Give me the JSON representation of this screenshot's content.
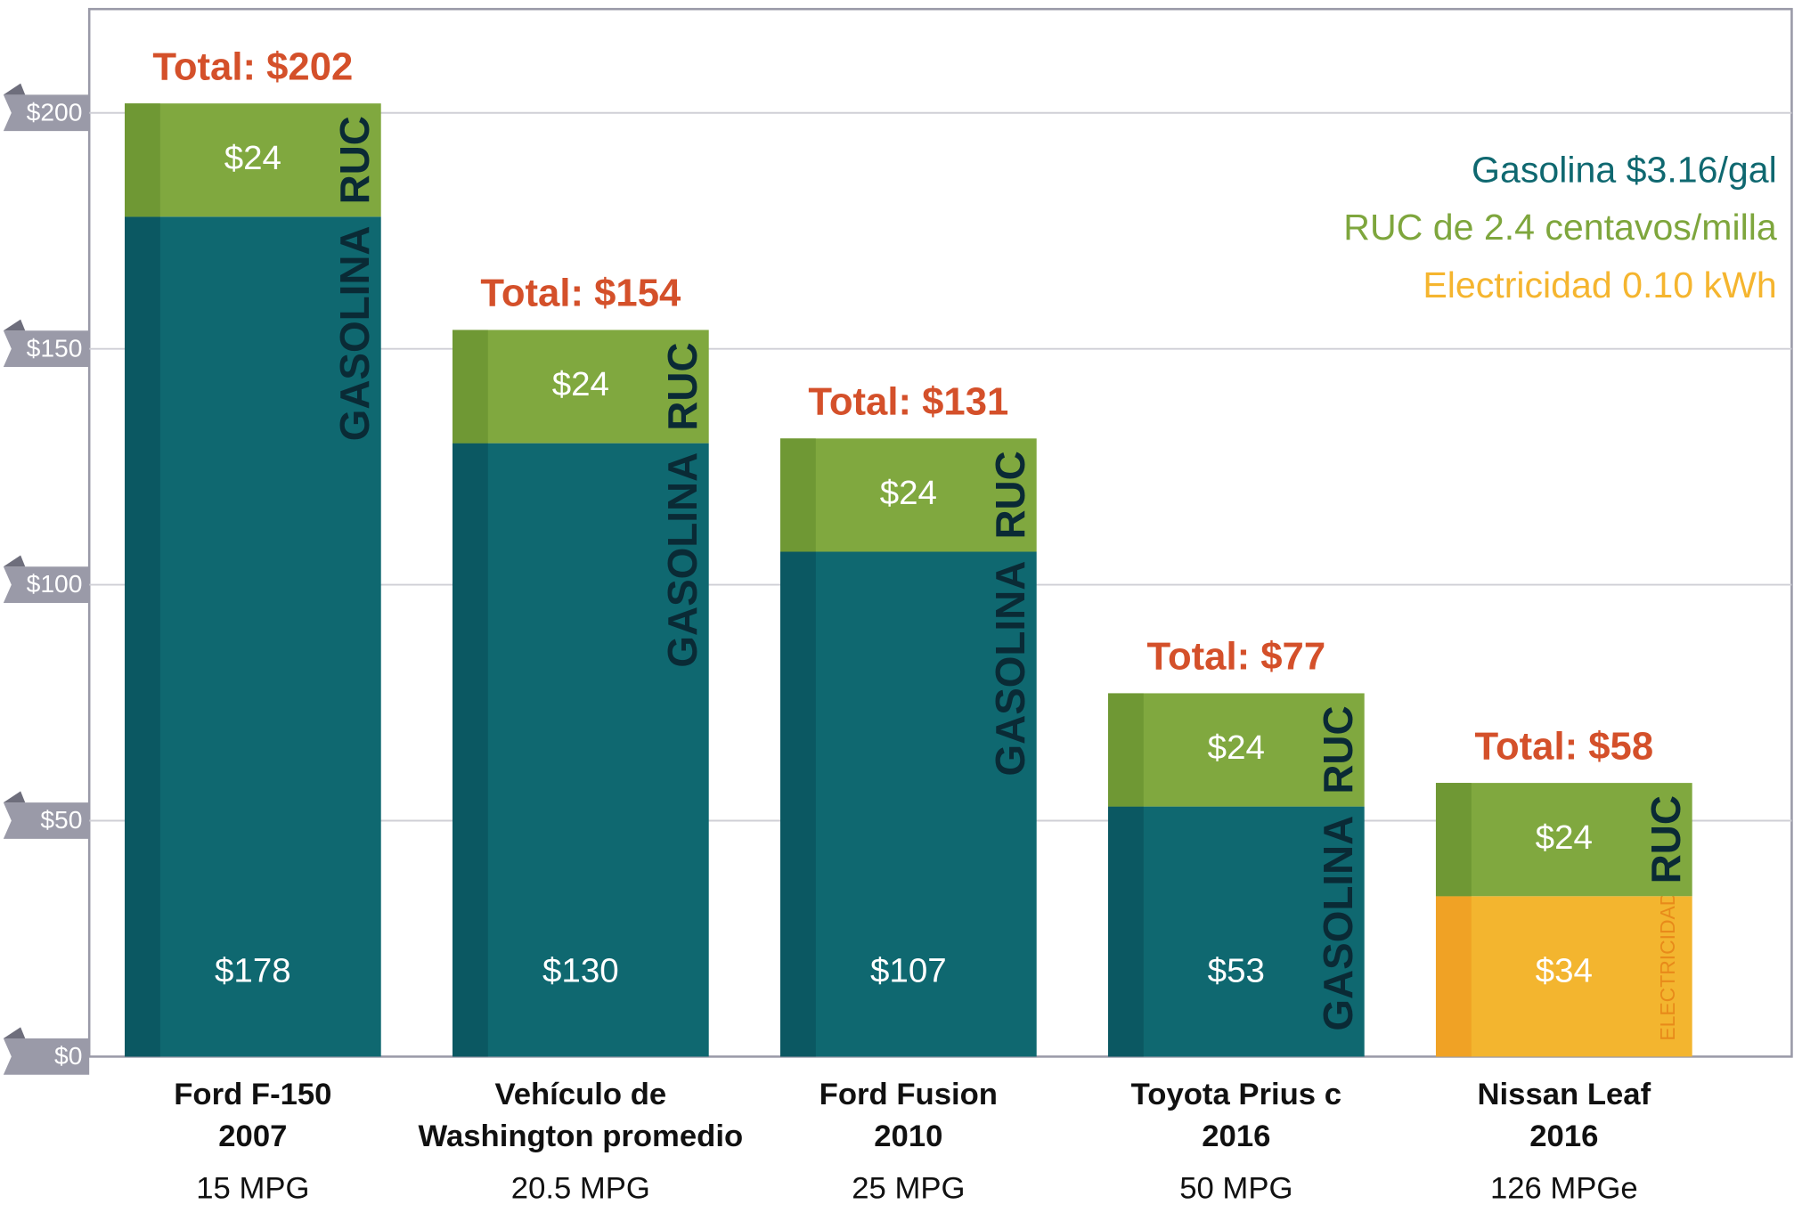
{
  "chart_data": {
    "type": "stacked_bar",
    "categories": [
      [
        "Ford F-150",
        "2007"
      ],
      [
        "Vehículo de",
        "Washington promedio"
      ],
      [
        "Ford Fusion",
        "2010"
      ],
      [
        "Toyota Prius c",
        "2016"
      ],
      [
        "Nissan Leaf",
        "2016"
      ]
    ],
    "category_notes": [
      "15 MPG",
      "20.5 MPG",
      "25 MPG",
      "50 MPG",
      "126 MPGe"
    ],
    "total_labels": [
      "Total: $202",
      "Total: $154",
      "Total: $131",
      "Total: $77",
      "Total: $58"
    ],
    "total_color": "#d4502a",
    "series": [
      {
        "name": "Gasolina $3.16/gal",
        "segment_label": "GASOLINA",
        "color": "#0f6870",
        "edge_color": "#0b5862",
        "legend_color": "#0f6870",
        "values": [
          178,
          130,
          107,
          53,
          null
        ],
        "value_labels": [
          "$178",
          "$130",
          "$107",
          "$53",
          null
        ]
      },
      {
        "name": "RUC de 2.4 centavos/milla",
        "segment_label": "RUC",
        "color": "#80a83f",
        "edge_color": "#6f9834",
        "legend_color": "#7ea63d",
        "values": [
          24,
          24,
          24,
          24,
          24
        ],
        "value_labels": [
          "$24",
          "$24",
          "$24",
          "$24",
          "$24"
        ]
      },
      {
        "name": "Electricidad 0.10 kWh",
        "segment_label": "ELECTRICIDAD",
        "color": "#f3b52f",
        "edge_color": "#f0a225",
        "legend_color": "#f5b52f",
        "values": [
          null,
          null,
          null,
          null,
          34
        ],
        "value_labels": [
          null,
          null,
          null,
          null,
          "$34"
        ]
      }
    ],
    "ylim": [
      0,
      222
    ],
    "yticks": [
      {
        "value": 0,
        "label": "$0"
      },
      {
        "value": 50,
        "label": "$50"
      },
      {
        "value": 100,
        "label": "$100"
      },
      {
        "value": 150,
        "label": "$150"
      },
      {
        "value": 200,
        "label": "$200"
      }
    ],
    "grid": true,
    "legend": "top-right"
  }
}
